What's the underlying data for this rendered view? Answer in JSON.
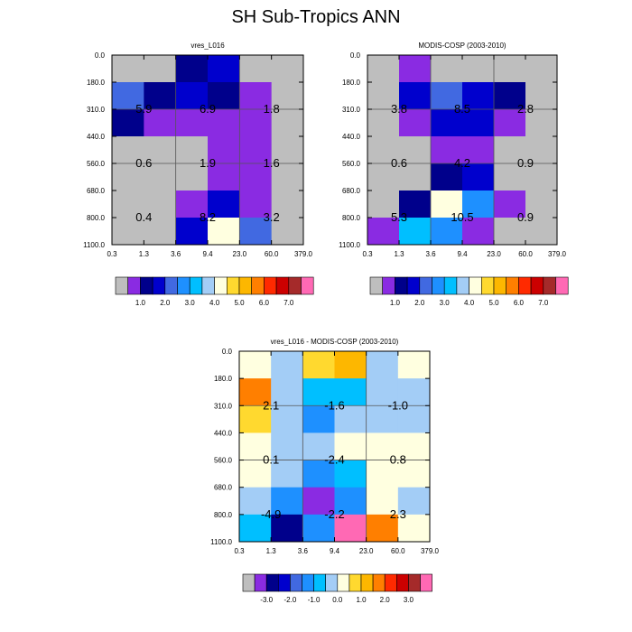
{
  "figure": {
    "title": "SH Sub-Tropics ANN"
  },
  "palettes": {
    "abs": [
      "#bebebe",
      "#8a2be2",
      "#00008b",
      "#0000cd",
      "#4169e1",
      "#1e90ff",
      "#00bfff",
      "#a3cdf6",
      "#ffffe0",
      "#ffd92f",
      "#fdb700",
      "#ff7f00",
      "#ff2a00",
      "#cc0000",
      "#a52a2a",
      "#ff69b4"
    ],
    "diff": [
      "#bebebe",
      "#8a2be2",
      "#00008b",
      "#0000cd",
      "#4169e1",
      "#1e90ff",
      "#00bfff",
      "#a3cdf6",
      "#ffffe0",
      "#ffd92f",
      "#fdb700",
      "#ff7f00",
      "#ff2a00",
      "#cc0000",
      "#a52a2a",
      "#ff69b4"
    ]
  },
  "chart_data": [
    {
      "type": "heatmap",
      "title": "vres_L016",
      "xticks": [
        "0.3",
        "1.3",
        "3.6",
        "9.4",
        "23.0",
        "60.0",
        "379.0"
      ],
      "yticks": [
        "0.0",
        "180.0",
        "310.0",
        "440.0",
        "560.0",
        "680.0",
        "800.0",
        "1100.0"
      ],
      "colors": [
        [
          "#bebebe",
          "#bebebe",
          "#00008b",
          "#0000cd",
          "#bebebe",
          "#bebebe"
        ],
        [
          "#4169e1",
          "#00008b",
          "#0000cd",
          "#00008b",
          "#8a2be2",
          "#bebebe"
        ],
        [
          "#00008b",
          "#8a2be2",
          "#8a2be2",
          "#8a2be2",
          "#8a2be2",
          "#bebebe"
        ],
        [
          "#bebebe",
          "#bebebe",
          "#bebebe",
          "#8a2be2",
          "#8a2be2",
          "#bebebe"
        ],
        [
          "#bebebe",
          "#bebebe",
          "#bebebe",
          "#8a2be2",
          "#8a2be2",
          "#bebebe"
        ],
        [
          "#bebebe",
          "#bebebe",
          "#8a2be2",
          "#0000cd",
          "#8a2be2",
          "#bebebe"
        ],
        [
          "#bebebe",
          "#bebebe",
          "#0000cd",
          "#ffffe0",
          "#4169e1",
          "#bebebe"
        ]
      ],
      "labels": [
        {
          "row": 1,
          "col": 0,
          "text": "5.9"
        },
        {
          "row": 1,
          "col": 2,
          "text": "6.9"
        },
        {
          "row": 1,
          "col": 4,
          "text": "1.8"
        },
        {
          "row": 3,
          "col": 0,
          "text": "0.6"
        },
        {
          "row": 3,
          "col": 2,
          "text": "1.9"
        },
        {
          "row": 3,
          "col": 4,
          "text": "1.6"
        },
        {
          "row": 5,
          "col": 0,
          "text": "0.4"
        },
        {
          "row": 5,
          "col": 2,
          "text": "8.2"
        },
        {
          "row": 5,
          "col": 4,
          "text": "3.2"
        }
      ],
      "colorbar": {
        "palette": "abs",
        "labels": [
          "1.0",
          "2.0",
          "3.0",
          "4.0",
          "5.0",
          "6.0",
          "7.0"
        ]
      }
    },
    {
      "type": "heatmap",
      "title": "MODIS-COSP (2003-2010)",
      "xticks": [
        "0.3",
        "1.3",
        "3.6",
        "9.4",
        "23.0",
        "60.0",
        "379.0"
      ],
      "yticks": [
        "0.0",
        "180.0",
        "310.0",
        "440.0",
        "560.0",
        "680.0",
        "800.0",
        "1100.0"
      ],
      "colors": [
        [
          "#bebebe",
          "#8a2be2",
          "#bebebe",
          "#bebebe",
          "#bebebe",
          "#bebebe"
        ],
        [
          "#bebebe",
          "#0000cd",
          "#4169e1",
          "#0000cd",
          "#00008b",
          "#bebebe"
        ],
        [
          "#bebebe",
          "#8a2be2",
          "#0000cd",
          "#0000cd",
          "#8a2be2",
          "#bebebe"
        ],
        [
          "#bebebe",
          "#bebebe",
          "#8a2be2",
          "#8a2be2",
          "#bebebe",
          "#bebebe"
        ],
        [
          "#bebebe",
          "#bebebe",
          "#00008b",
          "#0000cd",
          "#bebebe",
          "#bebebe"
        ],
        [
          "#bebebe",
          "#00008b",
          "#ffffe0",
          "#1e90ff",
          "#8a2be2",
          "#bebebe"
        ],
        [
          "#8a2be2",
          "#00bfff",
          "#1e90ff",
          "#8a2be2",
          "#bebebe",
          "#bebebe"
        ]
      ],
      "labels": [
        {
          "row": 1,
          "col": 0,
          "text": "3.8"
        },
        {
          "row": 1,
          "col": 2,
          "text": "8.5"
        },
        {
          "row": 1,
          "col": 4,
          "text": "2.8"
        },
        {
          "row": 3,
          "col": 0,
          "text": "0.6"
        },
        {
          "row": 3,
          "col": 2,
          "text": "4.2"
        },
        {
          "row": 3,
          "col": 4,
          "text": "0.9"
        },
        {
          "row": 5,
          "col": 0,
          "text": "5.3"
        },
        {
          "row": 5,
          "col": 2,
          "text": "10.5"
        },
        {
          "row": 5,
          "col": 4,
          "text": "0.9"
        }
      ],
      "colorbar": {
        "palette": "abs",
        "labels": [
          "1.0",
          "2.0",
          "3.0",
          "4.0",
          "5.0",
          "6.0",
          "7.0"
        ]
      }
    },
    {
      "type": "heatmap",
      "title": "vres_L016 - MODIS-COSP (2003-2010)",
      "xticks": [
        "0.3",
        "1.3",
        "3.6",
        "9.4",
        "23.0",
        "60.0",
        "379.0"
      ],
      "yticks": [
        "0.0",
        "180.0",
        "310.0",
        "440.0",
        "560.0",
        "680.0",
        "800.0",
        "1100.0"
      ],
      "colors": [
        [
          "#ffffe0",
          "#a3cdf6",
          "#ffd92f",
          "#fdb700",
          "#a3cdf6",
          "#ffffe0"
        ],
        [
          "#ff7f00",
          "#a3cdf6",
          "#00bfff",
          "#00bfff",
          "#a3cdf6",
          "#a3cdf6"
        ],
        [
          "#ffd92f",
          "#a3cdf6",
          "#1e90ff",
          "#a3cdf6",
          "#a3cdf6",
          "#a3cdf6"
        ],
        [
          "#ffffe0",
          "#a3cdf6",
          "#a3cdf6",
          "#ffffe0",
          "#ffffe0",
          "#ffffe0"
        ],
        [
          "#ffffe0",
          "#a3cdf6",
          "#1e90ff",
          "#00bfff",
          "#ffffe0",
          "#ffffe0"
        ],
        [
          "#a3cdf6",
          "#1e90ff",
          "#8a2be2",
          "#1e90ff",
          "#ffffe0",
          "#a3cdf6"
        ],
        [
          "#00bfff",
          "#00008b",
          "#1e90ff",
          "#ff69b4",
          "#ff7f00",
          "#ffffe0"
        ]
      ],
      "labels": [
        {
          "row": 1,
          "col": 0,
          "text": "2.1"
        },
        {
          "row": 1,
          "col": 2,
          "text": "-1.6"
        },
        {
          "row": 1,
          "col": 4,
          "text": "-1.0"
        },
        {
          "row": 3,
          "col": 0,
          "text": "0.1"
        },
        {
          "row": 3,
          "col": 2,
          "text": "-2.4"
        },
        {
          "row": 3,
          "col": 4,
          "text": "0.8"
        },
        {
          "row": 5,
          "col": 0,
          "text": "-4.9"
        },
        {
          "row": 5,
          "col": 2,
          "text": "-2.2"
        },
        {
          "row": 5,
          "col": 4,
          "text": "2.3"
        }
      ],
      "colorbar": {
        "palette": "diff",
        "labels": [
          "-3.0",
          "-2.0",
          "-1.0",
          "0.0",
          "1.0",
          "2.0",
          "3.0"
        ]
      }
    }
  ]
}
